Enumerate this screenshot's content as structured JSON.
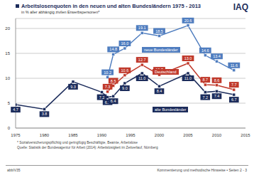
{
  "chart_data": {
    "type": "line",
    "title": "Arbeitslosenquoten in den neuen und alten Bundesländern 1975 - 2013",
    "subtitle": "in % aller abhängig zivilen Erwerbspersonen*",
    "annotations": [
      "IAQ",
      "* Sozialversicherungspflichtig und geringfügig Beschäftigte, Beamte, Arbeitslose",
      "Quelle: Statistik der Bundesagentur für Arbeit (2014): Arbeitslosigkeit im Zeitverlauf, Nürnberg",
      "abbIV35",
      "Kommentierung und methodische Hinweise • Seiten 2 - 3"
    ],
    "x": [
      1975,
      1980,
      1985,
      1990,
      1991,
      1992,
      1994,
      1997,
      2000,
      2005,
      2008,
      2010,
      2013
    ],
    "series": [
      {
        "name": "neue Bundesländer",
        "color": "#4f7dbf",
        "marker": "square",
        "values": [
          null,
          null,
          null,
          null,
          10.2,
          14.8,
          16.0,
          19.1,
          18.5,
          20.6,
          14.6,
          13.4,
          11.6
        ],
        "value_labels": [
          null,
          null,
          null,
          null,
          "10.2",
          "14.8",
          "16.0",
          "19.1",
          "18.5",
          "20.6",
          "14.6",
          "13.4",
          "11.6"
        ]
      },
      {
        "name": "Deutschland",
        "color": "#c0392b",
        "marker": "square",
        "values": [
          null,
          null,
          null,
          null,
          7.3,
          8.5,
          10.6,
          12.7,
          10.7,
          13.0,
          8.7,
          8.6,
          7.7
        ],
        "value_labels": [
          null,
          null,
          null,
          null,
          "7.3",
          "8.5",
          "10.6",
          "12.7",
          "10.7",
          "13.0",
          "8.7",
          "8.6",
          "7.7"
        ]
      },
      {
        "name": "alte Bundesländer",
        "color": "#1c2c5b",
        "marker": "square",
        "values": [
          4.7,
          3.8,
          9.3,
          7.2,
          6.2,
          6.4,
          9.0,
          11.0,
          8.4,
          11.0,
          7.2,
          7.4,
          6.7
        ],
        "value_labels": [
          "4.7",
          "3.8",
          "9.3",
          "7.2",
          "6.2",
          "6.4",
          "9.0",
          "11.0",
          "8.4",
          "11.0",
          "7.2",
          "7.4",
          "6.7"
        ]
      }
    ],
    "xlim": [
      1975,
      2015
    ],
    "xticks": [
      1975,
      1980,
      1985,
      1990,
      1995,
      2000,
      2005,
      2010,
      2015
    ],
    "ylim": [
      0,
      22
    ],
    "yticks": [
      0,
      5,
      10,
      15,
      20
    ],
    "grid": true,
    "data_labels": true
  }
}
